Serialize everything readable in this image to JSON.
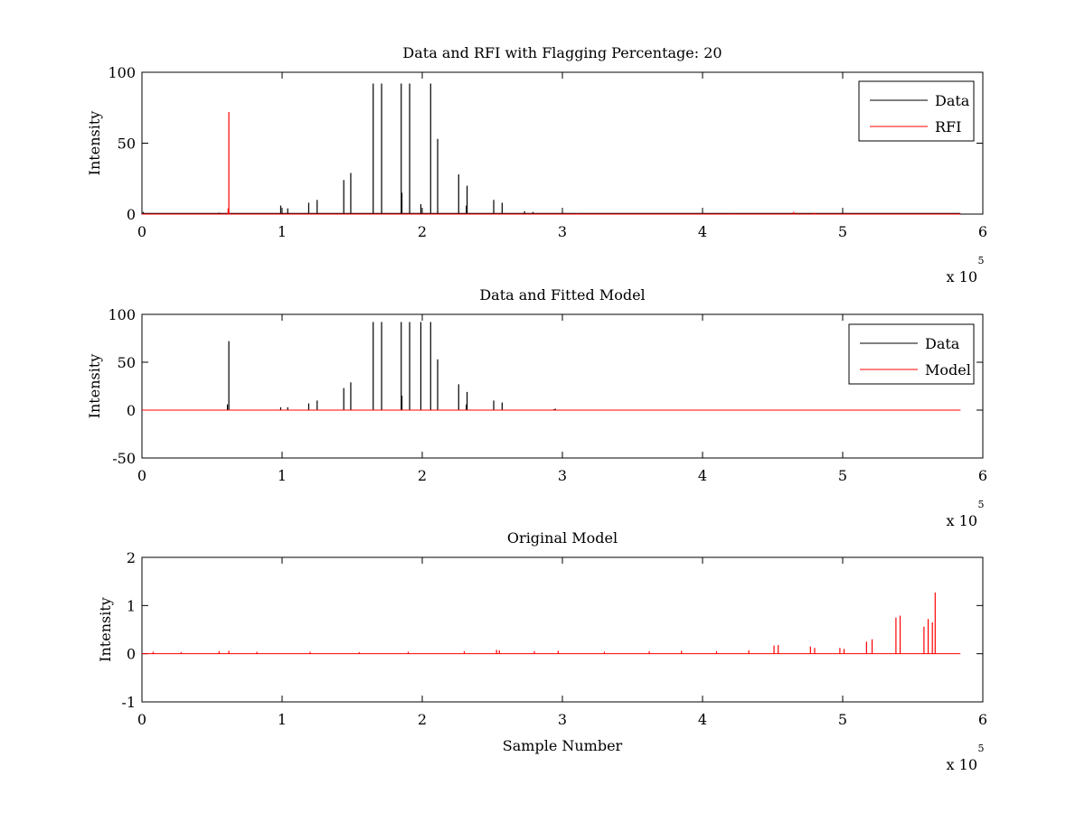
{
  "chart_data": [
    {
      "type": "line",
      "title": "Data and RFI with Flagging Percentage: 20",
      "xlabel": "",
      "ylabel": "Intensity",
      "xlim": [
        0,
        6
      ],
      "ylim": [
        0,
        100
      ],
      "xticks": [
        "0",
        "1",
        "2",
        "3",
        "4",
        "5",
        "6"
      ],
      "yticks": [
        "0",
        "50",
        "100"
      ],
      "x_multiplier_base": "x 10",
      "x_multiplier_exp": "5",
      "legend_position": "top-right",
      "series": [
        {
          "name": "Data",
          "color": "#000000",
          "baseline": 0.5,
          "spikes": [
            [
              0.01,
              1.5
            ],
            [
              0.55,
              1
            ],
            [
              0.99,
              6
            ],
            [
              1.04,
              4
            ],
            [
              1.19,
              8
            ],
            [
              1.25,
              10
            ],
            [
              1.44,
              24
            ],
            [
              1.49,
              29
            ],
            [
              1.65,
              92
            ],
            [
              1.71,
              92
            ],
            [
              1.85,
              92
            ],
            [
              1.855,
              15
            ],
            [
              1.91,
              92
            ],
            [
              1.99,
              7
            ],
            [
              2.06,
              92
            ],
            [
              2.11,
              53
            ],
            [
              2.26,
              28
            ],
            [
              2.32,
              20
            ],
            [
              2.315,
              6
            ],
            [
              2.51,
              10
            ],
            [
              2.57,
              8
            ],
            [
              2.73,
              2
            ],
            [
              2.79,
              1.5
            ],
            [
              3.0,
              1
            ],
            [
              4.0,
              1
            ],
            [
              5.0,
              1
            ]
          ]
        },
        {
          "name": "RFI",
          "color": "#ff0000",
          "baseline": 0,
          "spikes": [
            [
              0.62,
              72
            ],
            [
              0.615,
              4
            ],
            [
              3.1,
              0.5
            ],
            [
              4.2,
              0.5
            ],
            [
              4.65,
              1.5
            ],
            [
              4.8,
              0.8
            ]
          ]
        }
      ]
    },
    {
      "type": "line",
      "title": "Data and Fitted Model",
      "xlabel": "",
      "ylabel": "Intensity",
      "xlim": [
        0,
        6
      ],
      "ylim": [
        -50,
        100
      ],
      "xticks": [
        "0",
        "1",
        "2",
        "3",
        "4",
        "5",
        "6"
      ],
      "yticks": [
        "-50",
        "0",
        "50",
        "100"
      ],
      "x_multiplier_base": "x 10",
      "x_multiplier_exp": "5",
      "legend_position": "top-right",
      "series": [
        {
          "name": "Data",
          "color": "#000000",
          "baseline": 0,
          "spikes": [
            [
              0.62,
              72
            ],
            [
              0.61,
              6
            ],
            [
              0.99,
              3
            ],
            [
              1.04,
              3
            ],
            [
              1.19,
              7
            ],
            [
              1.25,
              10
            ],
            [
              1.44,
              23
            ],
            [
              1.49,
              29
            ],
            [
              1.65,
              92
            ],
            [
              1.71,
              92
            ],
            [
              1.85,
              92
            ],
            [
              1.855,
              15
            ],
            [
              1.91,
              92
            ],
            [
              1.99,
              92
            ],
            [
              2.06,
              92
            ],
            [
              2.11,
              53
            ],
            [
              2.26,
              27
            ],
            [
              2.32,
              19
            ],
            [
              2.315,
              6
            ],
            [
              2.51,
              10
            ],
            [
              2.57,
              8
            ],
            [
              2.94,
              1
            ],
            [
              2.95,
              1.5
            ]
          ]
        },
        {
          "name": "Model",
          "color": "#ff0000",
          "baseline": 0,
          "spikes": []
        }
      ]
    },
    {
      "type": "line",
      "title": "Original Model",
      "xlabel": "Sample Number",
      "ylabel": "Intensity",
      "xlim": [
        0,
        6
      ],
      "ylim": [
        -1,
        2
      ],
      "xticks": [
        "0",
        "1",
        "2",
        "3",
        "4",
        "5",
        "6"
      ],
      "yticks": [
        "-1",
        "0",
        "1",
        "2"
      ],
      "x_multiplier_base": "x 10",
      "x_multiplier_exp": "5",
      "legend_position": "none",
      "series": [
        {
          "color": "#ff0000",
          "baseline": 0,
          "spikes": [
            [
              0.08,
              0.04
            ],
            [
              0.28,
              0.03
            ],
            [
              0.55,
              0.05
            ],
            [
              0.62,
              0.06
            ],
            [
              0.82,
              0.04
            ],
            [
              1.2,
              0.04
            ],
            [
              1.55,
              0.03
            ],
            [
              1.9,
              0.04
            ],
            [
              2.3,
              0.05
            ],
            [
              2.53,
              0.08
            ],
            [
              2.55,
              0.07
            ],
            [
              2.8,
              0.05
            ],
            [
              2.97,
              0.06
            ],
            [
              3.3,
              0.04
            ],
            [
              3.62,
              0.05
            ],
            [
              3.85,
              0.06
            ],
            [
              4.1,
              0.05
            ],
            [
              4.33,
              0.07
            ],
            [
              4.51,
              0.17
            ],
            [
              4.54,
              0.18
            ],
            [
              4.77,
              0.15
            ],
            [
              4.8,
              0.12
            ],
            [
              4.98,
              0.12
            ],
            [
              5.01,
              0.1
            ],
            [
              5.17,
              0.25
            ],
            [
              5.21,
              0.3
            ],
            [
              5.38,
              0.75
            ],
            [
              5.41,
              0.79
            ],
            [
              5.58,
              0.56
            ],
            [
              5.61,
              0.72
            ],
            [
              5.64,
              0.65
            ],
            [
              5.66,
              1.27
            ]
          ]
        }
      ]
    }
  ]
}
